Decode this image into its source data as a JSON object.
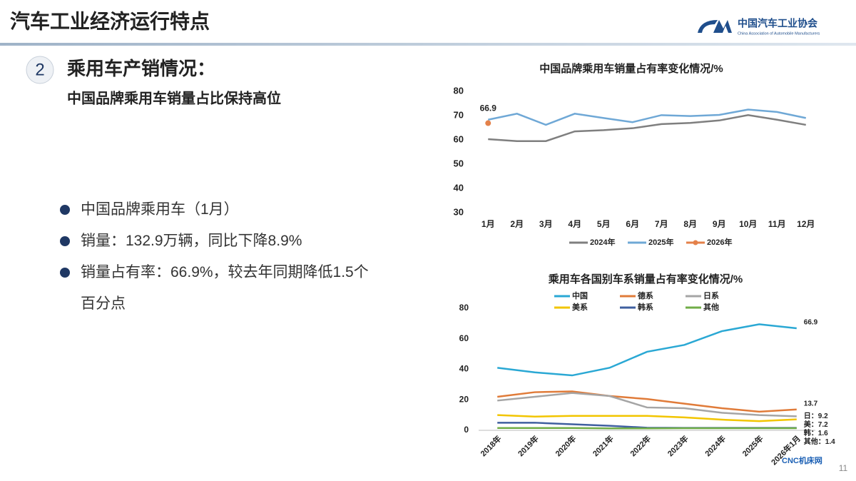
{
  "slide": {
    "title": "汽车工业经济运行特点",
    "logo_name": "中国汽车工业协会",
    "logo_english": "China Association of Automobile Manufacturers",
    "section_number": "2",
    "heading": "乘用车产销情况：",
    "subheading": "中国品牌乘用车销量占比保持高位",
    "bullets": [
      "中国品牌乘用车（1月）",
      "销量：132.9万辆，同比下降8.9%",
      "销量占有率：66.9%，较去年同期降低1.5个百分点"
    ],
    "page_number": "11",
    "watermark": "CNC机床网"
  },
  "chart_data": [
    {
      "type": "line",
      "title": "中国品牌乘用车销量占有率变化情况/%",
      "categories": [
        "1月",
        "2月",
        "3月",
        "4月",
        "5月",
        "6月",
        "7月",
        "8月",
        "9月",
        "10月",
        "11月",
        "12月"
      ],
      "series": [
        {
          "name": "2024年",
          "color": "#7f7f7f",
          "values": [
            60.3,
            59.5,
            59.5,
            63.5,
            64,
            64.8,
            66.5,
            67,
            68,
            70.2,
            68.3,
            66.2
          ]
        },
        {
          "name": "2025年",
          "color": "#6fa8d6",
          "values": [
            68.3,
            70.8,
            66.2,
            70.8,
            69,
            67.3,
            70.2,
            69.8,
            70.3,
            72.5,
            71.5,
            69
          ]
        },
        {
          "name": "2026年",
          "color": "#e4814a",
          "marker": true,
          "data_labels": "last",
          "values": [
            66.9,
            null,
            null,
            null,
            null,
            null,
            null,
            null,
            null,
            null,
            null,
            null
          ]
        }
      ],
      "ylim": [
        30,
        80
      ],
      "yticks": [
        30,
        40,
        50,
        60,
        70,
        80
      ],
      "grid": false,
      "legend": "bottom"
    },
    {
      "type": "line",
      "title": "乘用车各国别车系销量占有率变化情况/%",
      "categories": [
        "2018年",
        "2019年",
        "2020年",
        "2021年",
        "2022年",
        "2023年",
        "2024年",
        "2025年",
        "2026年1月"
      ],
      "series": [
        {
          "name": "中国",
          "color": "#2aa8d4",
          "data_labels": "last",
          "values": [
            41,
            38,
            36,
            41,
            51.5,
            56,
            65,
            69.5,
            66.9
          ]
        },
        {
          "name": "德系",
          "color": "#e07b39",
          "data_labels": "last",
          "values": [
            22,
            25,
            25.5,
            22.5,
            20.5,
            17.5,
            14.5,
            12.2,
            13.7
          ]
        },
        {
          "name": "日系",
          "color": "#a5a5a5",
          "values": [
            19.5,
            22,
            24.5,
            22.5,
            15,
            14.5,
            11.5,
            10,
            9.2
          ],
          "value_labels": [
            null,
            null,
            null,
            null,
            null,
            null,
            null,
            null,
            "日：9.2"
          ]
        },
        {
          "name": "美系",
          "color": "#f2c500",
          "values": [
            10,
            9,
            9.5,
            9.5,
            9.5,
            8.5,
            7,
            6,
            7.2
          ],
          "value_labels": [
            null,
            null,
            null,
            null,
            null,
            null,
            null,
            null,
            "美：7.2"
          ]
        },
        {
          "name": "韩系",
          "color": "#3f5f9f",
          "values": [
            5,
            5,
            4,
            3,
            1.7,
            1.6,
            1.6,
            1.6,
            1.6
          ],
          "value_labels": [
            null,
            null,
            null,
            null,
            null,
            null,
            null,
            null,
            "韩：1.6"
          ]
        },
        {
          "name": "其他",
          "color": "#70ad47",
          "values": [
            1.5,
            1.5,
            1.5,
            1.3,
            1.3,
            1.4,
            1.4,
            1.4,
            1.4
          ],
          "value_labels": [
            null,
            null,
            null,
            null,
            null,
            null,
            null,
            null,
            "其他：1.4"
          ]
        }
      ],
      "ylim": [
        0,
        80
      ],
      "yticks": [
        0,
        20,
        40,
        60,
        80
      ],
      "grid": false,
      "legend": "top"
    }
  ]
}
